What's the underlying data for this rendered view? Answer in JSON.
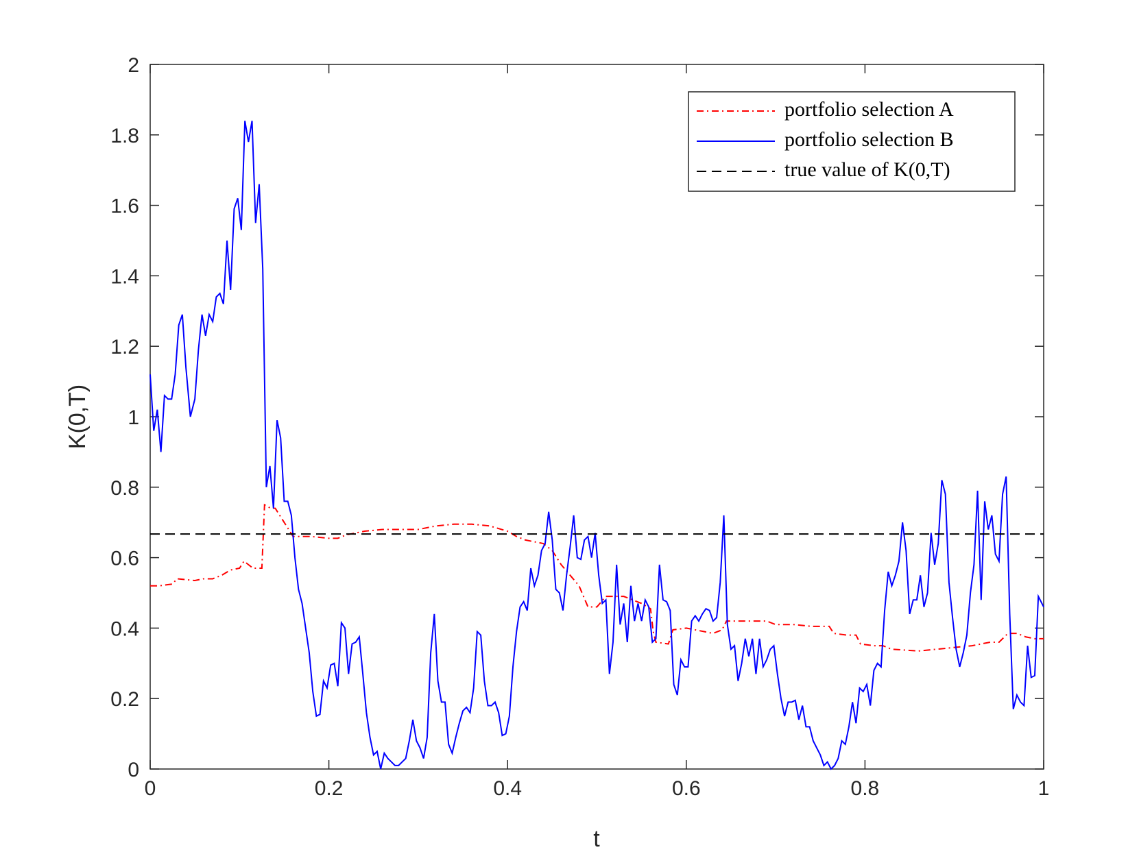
{
  "chart_data": {
    "type": "line",
    "xlabel": "t",
    "ylabel": "K(0,T)",
    "xlim": [
      0,
      1
    ],
    "ylim": [
      0,
      2
    ],
    "xticks": [
      0,
      0.2,
      0.4,
      0.6,
      0.8,
      1
    ],
    "yticks": [
      0,
      0.2,
      0.4,
      0.6,
      0.8,
      1,
      1.2,
      1.4,
      1.6,
      1.8,
      2
    ],
    "grid": false,
    "legend": "upper right",
    "series": [
      {
        "name": "portfolio selection A",
        "color": "#ff0000",
        "linestyle": "dashdot",
        "x": [
          0,
          0.01,
          0.025,
          0.03,
          0.05,
          0.06,
          0.07,
          0.08,
          0.09,
          0.1,
          0.105,
          0.11,
          0.115,
          0.125,
          0.128,
          0.135,
          0.14,
          0.145,
          0.15,
          0.155,
          0.16,
          0.18,
          0.2,
          0.21,
          0.22,
          0.24,
          0.26,
          0.3,
          0.32,
          0.34,
          0.36,
          0.38,
          0.4,
          0.41,
          0.42,
          0.44,
          0.45,
          0.46,
          0.47,
          0.48,
          0.49,
          0.5,
          0.51,
          0.53,
          0.55,
          0.56,
          0.563,
          0.566,
          0.58,
          0.585,
          0.6,
          0.62,
          0.63,
          0.64,
          0.645,
          0.66,
          0.68,
          0.69,
          0.7,
          0.72,
          0.74,
          0.76,
          0.765,
          0.78,
          0.79,
          0.795,
          0.81,
          0.82,
          0.83,
          0.86,
          0.88,
          0.9,
          0.92,
          0.94,
          0.95,
          0.96,
          0.97,
          0.98,
          0.99,
          1.0
        ],
        "values": [
          0.52,
          0.52,
          0.525,
          0.54,
          0.535,
          0.54,
          0.54,
          0.55,
          0.565,
          0.57,
          0.59,
          0.58,
          0.57,
          0.57,
          0.75,
          0.74,
          0.74,
          0.72,
          0.7,
          0.68,
          0.66,
          0.66,
          0.655,
          0.655,
          0.665,
          0.675,
          0.68,
          0.68,
          0.69,
          0.695,
          0.695,
          0.69,
          0.675,
          0.66,
          0.65,
          0.64,
          0.62,
          0.58,
          0.55,
          0.52,
          0.46,
          0.46,
          0.49,
          0.49,
          0.47,
          0.455,
          0.39,
          0.36,
          0.355,
          0.395,
          0.4,
          0.39,
          0.385,
          0.395,
          0.42,
          0.42,
          0.42,
          0.42,
          0.41,
          0.41,
          0.405,
          0.405,
          0.385,
          0.38,
          0.38,
          0.355,
          0.35,
          0.35,
          0.34,
          0.335,
          0.34,
          0.345,
          0.35,
          0.36,
          0.36,
          0.385,
          0.385,
          0.375,
          0.37,
          0.37
        ]
      },
      {
        "name": "portfolio selection B",
        "color": "#0000ff",
        "linestyle": "solid",
        "x": [
          0,
          0.004,
          0.008,
          0.012,
          0.016,
          0.02,
          0.024,
          0.028,
          0.032,
          0.036,
          0.04,
          0.045,
          0.05,
          0.054,
          0.058,
          0.062,
          0.066,
          0.07,
          0.074,
          0.078,
          0.082,
          0.086,
          0.09,
          0.094,
          0.098,
          0.102,
          0.106,
          0.11,
          0.114,
          0.118,
          0.122,
          0.126,
          0.13,
          0.134,
          0.138,
          0.142,
          0.146,
          0.15,
          0.154,
          0.158,
          0.162,
          0.166,
          0.17,
          0.174,
          0.178,
          0.182,
          0.186,
          0.19,
          0.194,
          0.198,
          0.202,
          0.206,
          0.21,
          0.214,
          0.218,
          0.222,
          0.226,
          0.23,
          0.234,
          0.238,
          0.242,
          0.246,
          0.25,
          0.254,
          0.258,
          0.262,
          0.266,
          0.27,
          0.274,
          0.278,
          0.282,
          0.286,
          0.29,
          0.294,
          0.298,
          0.302,
          0.306,
          0.31,
          0.314,
          0.318,
          0.322,
          0.326,
          0.33,
          0.334,
          0.338,
          0.342,
          0.346,
          0.35,
          0.354,
          0.358,
          0.362,
          0.366,
          0.37,
          0.374,
          0.378,
          0.382,
          0.386,
          0.39,
          0.394,
          0.398,
          0.402,
          0.406,
          0.41,
          0.414,
          0.418,
          0.422,
          0.426,
          0.43,
          0.434,
          0.438,
          0.442,
          0.446,
          0.45,
          0.454,
          0.458,
          0.462,
          0.466,
          0.47,
          0.474,
          0.478,
          0.482,
          0.486,
          0.49,
          0.494,
          0.498,
          0.502,
          0.506,
          0.51,
          0.514,
          0.518,
          0.522,
          0.526,
          0.53,
          0.534,
          0.538,
          0.542,
          0.546,
          0.55,
          0.554,
          0.558,
          0.562,
          0.566,
          0.57,
          0.574,
          0.578,
          0.582,
          0.586,
          0.59,
          0.594,
          0.598,
          0.602,
          0.606,
          0.61,
          0.614,
          0.618,
          0.622,
          0.626,
          0.63,
          0.634,
          0.638,
          0.642,
          0.646,
          0.65,
          0.654,
          0.658,
          0.662,
          0.666,
          0.67,
          0.674,
          0.678,
          0.682,
          0.686,
          0.69,
          0.694,
          0.698,
          0.702,
          0.706,
          0.71,
          0.714,
          0.718,
          0.722,
          0.726,
          0.73,
          0.734,
          0.738,
          0.742,
          0.746,
          0.75,
          0.754,
          0.758,
          0.762,
          0.766,
          0.77,
          0.774,
          0.778,
          0.782,
          0.786,
          0.79,
          0.794,
          0.798,
          0.802,
          0.806,
          0.81,
          0.814,
          0.818,
          0.822,
          0.826,
          0.83,
          0.834,
          0.838,
          0.842,
          0.846,
          0.85,
          0.854,
          0.858,
          0.862,
          0.866,
          0.87,
          0.874,
          0.878,
          0.882,
          0.886,
          0.89,
          0.894,
          0.898,
          0.902,
          0.906,
          0.91,
          0.914,
          0.918,
          0.922,
          0.926,
          0.93,
          0.934,
          0.938,
          0.942,
          0.946,
          0.95,
          0.954,
          0.958,
          0.962,
          0.966,
          0.97,
          0.974,
          0.978,
          0.982,
          0.986,
          0.99,
          0.994,
          1.0
        ],
        "values": [
          1.12,
          0.96,
          1.02,
          0.9,
          1.06,
          1.05,
          1.05,
          1.12,
          1.26,
          1.29,
          1.14,
          1.0,
          1.05,
          1.19,
          1.29,
          1.23,
          1.29,
          1.27,
          1.34,
          1.35,
          1.32,
          1.5,
          1.36,
          1.59,
          1.62,
          1.53,
          1.84,
          1.78,
          1.84,
          1.55,
          1.66,
          1.42,
          0.8,
          0.86,
          0.74,
          0.99,
          0.94,
          0.76,
          0.76,
          0.72,
          0.6,
          0.51,
          0.47,
          0.4,
          0.33,
          0.22,
          0.15,
          0.155,
          0.25,
          0.23,
          0.295,
          0.3,
          0.235,
          0.415,
          0.4,
          0.27,
          0.355,
          0.36,
          0.375,
          0.27,
          0.16,
          0.09,
          0.04,
          0.05,
          0.0,
          0.045,
          0.03,
          0.02,
          0.01,
          0.01,
          0.02,
          0.03,
          0.08,
          0.14,
          0.08,
          0.06,
          0.03,
          0.09,
          0.33,
          0.44,
          0.25,
          0.19,
          0.19,
          0.07,
          0.045,
          0.09,
          0.13,
          0.165,
          0.175,
          0.16,
          0.23,
          0.39,
          0.38,
          0.25,
          0.18,
          0.18,
          0.19,
          0.16,
          0.095,
          0.1,
          0.15,
          0.29,
          0.39,
          0.46,
          0.475,
          0.45,
          0.57,
          0.52,
          0.55,
          0.62,
          0.64,
          0.73,
          0.65,
          0.51,
          0.5,
          0.45,
          0.55,
          0.63,
          0.72,
          0.6,
          0.595,
          0.65,
          0.66,
          0.6,
          0.67,
          0.55,
          0.47,
          0.48,
          0.27,
          0.36,
          0.58,
          0.41,
          0.47,
          0.36,
          0.52,
          0.42,
          0.47,
          0.42,
          0.48,
          0.46,
          0.36,
          0.37,
          0.58,
          0.48,
          0.475,
          0.45,
          0.24,
          0.21,
          0.31,
          0.29,
          0.29,
          0.42,
          0.435,
          0.42,
          0.44,
          0.455,
          0.45,
          0.42,
          0.43,
          0.53,
          0.72,
          0.41,
          0.34,
          0.35,
          0.25,
          0.3,
          0.37,
          0.32,
          0.37,
          0.27,
          0.37,
          0.29,
          0.31,
          0.34,
          0.35,
          0.27,
          0.2,
          0.15,
          0.19,
          0.19,
          0.195,
          0.14,
          0.18,
          0.12,
          0.12,
          0.08,
          0.06,
          0.04,
          0.01,
          0.02,
          0.0,
          0.01,
          0.03,
          0.08,
          0.07,
          0.12,
          0.19,
          0.13,
          0.23,
          0.22,
          0.24,
          0.18,
          0.28,
          0.3,
          0.29,
          0.45,
          0.56,
          0.52,
          0.55,
          0.59,
          0.7,
          0.62,
          0.44,
          0.48,
          0.48,
          0.55,
          0.46,
          0.5,
          0.67,
          0.58,
          0.64,
          0.82,
          0.78,
          0.53,
          0.43,
          0.34,
          0.29,
          0.33,
          0.38,
          0.5,
          0.58,
          0.79,
          0.48,
          0.76,
          0.68,
          0.72,
          0.61,
          0.59,
          0.78,
          0.83,
          0.44,
          0.17,
          0.21,
          0.19,
          0.18,
          0.35,
          0.26,
          0.265,
          0.49,
          0.46
        ]
      },
      {
        "name": "true value of K(0,T)",
        "color": "#000000",
        "linestyle": "dashed",
        "x": [
          0,
          1
        ],
        "values": [
          0.667,
          0.667
        ]
      }
    ]
  }
}
